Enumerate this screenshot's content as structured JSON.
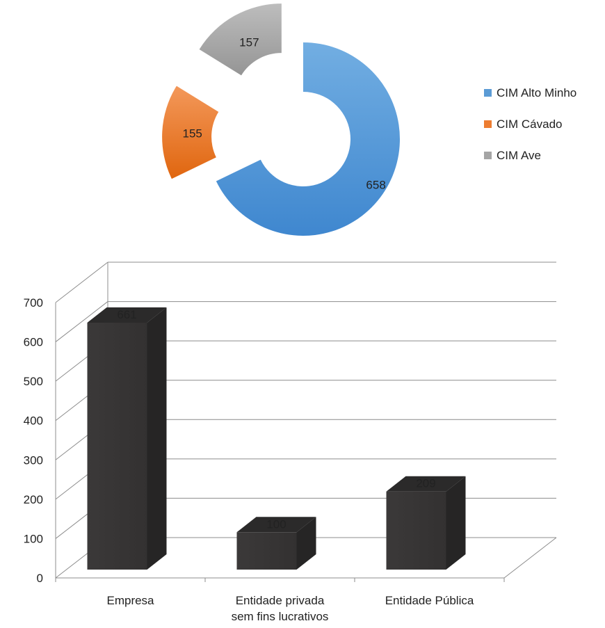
{
  "chart_data": [
    {
      "type": "pie",
      "subtype": "exploded-doughnut",
      "title": "",
      "slices": [
        {
          "label": "CIM Alto Minho",
          "value": 658,
          "color": "#5b9bd5"
        },
        {
          "label": "CIM Cávado",
          "value": 155,
          "color": "#ed7d31"
        },
        {
          "label": "CIM Ave",
          "value": 157,
          "color": "#a5a5a5"
        }
      ],
      "data_labels": [
        "658",
        "155",
        "157"
      ],
      "legend": "right"
    },
    {
      "type": "bar",
      "subtype": "3d-column",
      "title": "",
      "categories": [
        "Empresa",
        "Entidade privada sem fins lucrativos",
        "Entidade Pública"
      ],
      "category_labels": [
        [
          "Empresa"
        ],
        [
          "Entidade privada",
          "sem fins lucrativos"
        ],
        [
          "Entidade Pública"
        ]
      ],
      "values": [
        661,
        100,
        209
      ],
      "data_labels": [
        "661",
        "100",
        "209"
      ],
      "bar_color": "#3a3838",
      "ylim": [
        0,
        700
      ],
      "yticks": [
        "0",
        "100",
        "200",
        "300",
        "400",
        "500",
        "600",
        "700"
      ],
      "xlabel": "",
      "ylabel": "",
      "grid": true
    }
  ]
}
